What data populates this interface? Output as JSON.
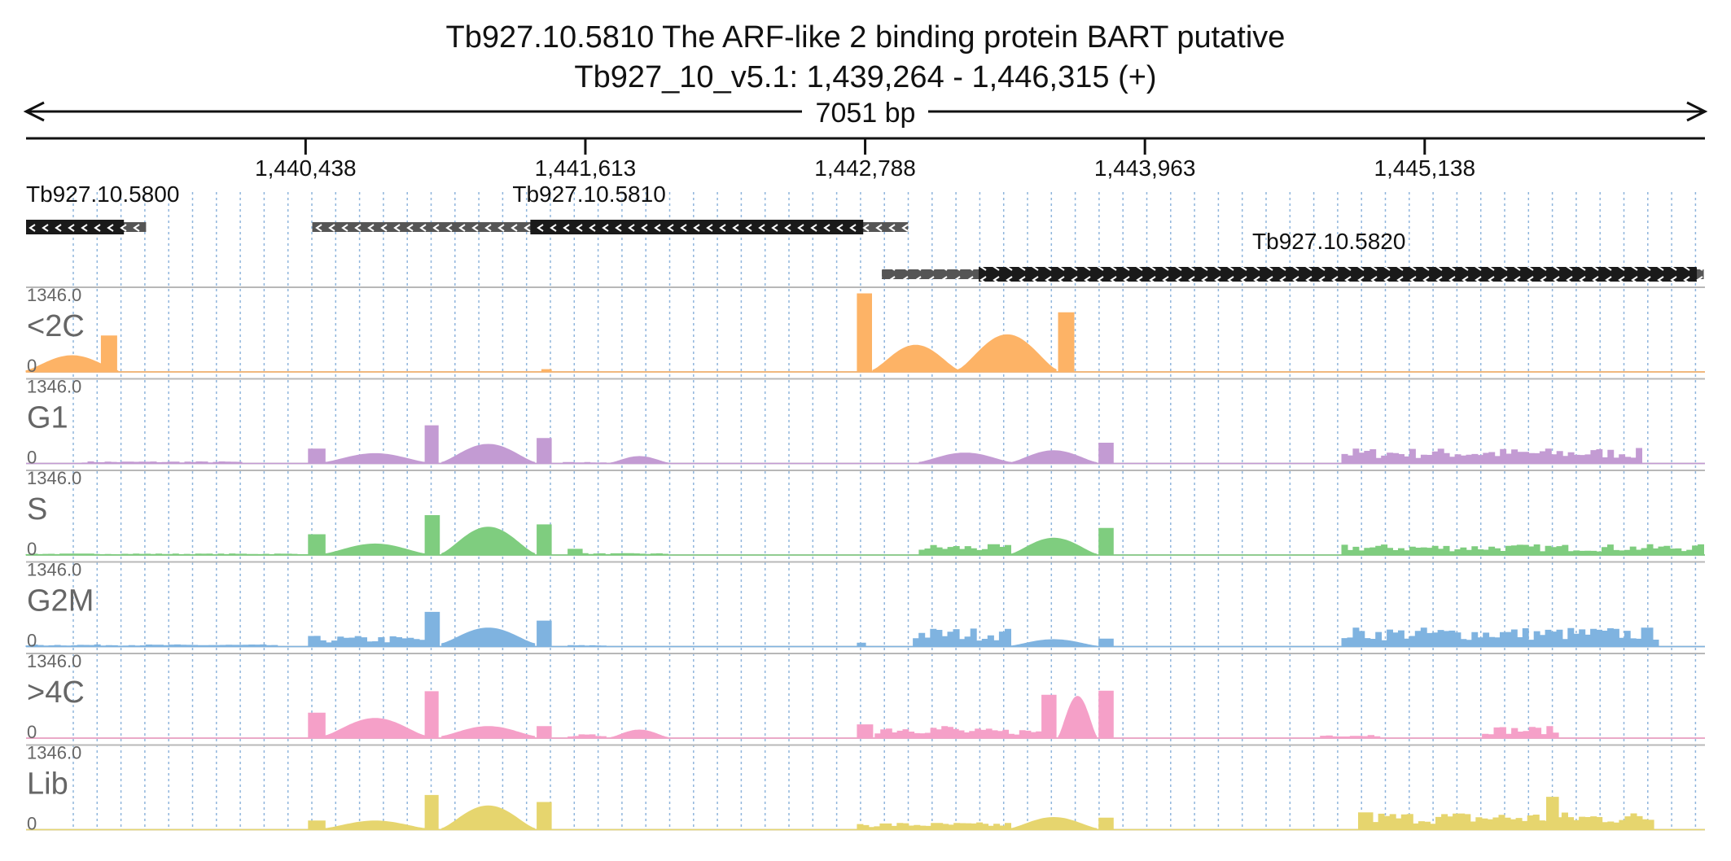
{
  "title": {
    "line1": "Tb927.10.5810  The ARF-like 2 binding protein BART  putative",
    "line2": "Tb927_10_v5.1: 1,439,264 - 1,446,315 (+)"
  },
  "ruler": {
    "span_label": "7051 bp",
    "ticks": [
      {
        "pos": 1440438,
        "label": "1,440,438"
      },
      {
        "pos": 1441613,
        "label": "1,441,613"
      },
      {
        "pos": 1442788,
        "label": "1,442,788"
      },
      {
        "pos": 1443963,
        "label": "1,443,963"
      },
      {
        "pos": 1445138,
        "label": "1,445,138"
      }
    ]
  },
  "genes": [
    {
      "name": "Tb927.10.5800",
      "strand": "-",
      "utr": [
        1439264,
        1439768
      ],
      "cds": [
        1439264,
        1439675
      ],
      "row": 0
    },
    {
      "name": "Tb927.10.5810",
      "strand": "-",
      "utr": [
        1440466,
        1442968
      ],
      "cds": [
        1441382,
        1442780
      ],
      "row": 0
    },
    {
      "name": "Tb927.10.5820",
      "strand": "-",
      "utr": [
        1442858,
        1446310
      ],
      "cds": [
        1443265,
        1446281
      ],
      "row": 1
    }
  ],
  "colors": {
    "<2C": "#fdb366",
    "G1": "#c39bd3",
    "S": "#7fcd7f",
    "G2M": "#7fb3e0",
    ">4C": "#f5a0c8",
    "Lib": "#e6d56e",
    "gene": "#1a1a1a",
    "utr": "#555555",
    "grid": "#8fb5dc"
  },
  "chart_data": {
    "type": "area",
    "x_range": [
      1439264,
      1446315
    ],
    "ylim": [
      0,
      1346.0
    ],
    "y_labels": {
      "max": "1346.0",
      "min": "0"
    },
    "tracks": [
      {
        "name": "<2C",
        "segments": [
          {
            "x": [
              1439264,
              1439650
            ],
            "shape": "dome",
            "peak": 280,
            "base": 20
          },
          {
            "x": [
              1439580,
              1439645
            ],
            "shape": "flat",
            "peak": 620
          },
          {
            "x": [
              1441430,
              1441470
            ],
            "shape": "flat",
            "peak": 40
          },
          {
            "x": [
              1442755,
              1442815
            ],
            "shape": "flat",
            "peak": 1346
          },
          {
            "x": [
              1442820,
              1443180
            ],
            "shape": "dome",
            "peak": 460,
            "base": 30
          },
          {
            "x": [
              1443180,
              1443590
            ],
            "shape": "dome",
            "peak": 640,
            "base": 40
          },
          {
            "x": [
              1443600,
              1443665
            ],
            "shape": "flat",
            "peak": 1020
          }
        ]
      },
      {
        "name": "G1",
        "segments": [
          {
            "x": [
              1439500,
              1440170
            ],
            "shape": "noise",
            "peak": 30
          },
          {
            "x": [
              1440450,
              1440520
            ],
            "shape": "flat",
            "peak": 250
          },
          {
            "x": [
              1440520,
              1440940
            ],
            "shape": "dome",
            "peak": 170,
            "base": 20
          },
          {
            "x": [
              1440940,
              1440995
            ],
            "shape": "flat",
            "peak": 650
          },
          {
            "x": [
              1441010,
              1441400
            ],
            "shape": "dome",
            "peak": 330,
            "base": 20
          },
          {
            "x": [
              1441410,
              1441470
            ],
            "shape": "flat",
            "peak": 430
          },
          {
            "x": [
              1441520,
              1441700
            ],
            "shape": "noise",
            "peak": 20
          },
          {
            "x": [
              1441720,
              1441960
            ],
            "shape": "dome",
            "peak": 120,
            "base": 10
          },
          {
            "x": [
              1443015,
              1443400
            ],
            "shape": "dome",
            "peak": 180,
            "base": 20
          },
          {
            "x": [
              1443400,
              1443760
            ],
            "shape": "dome",
            "peak": 220,
            "base": 15
          },
          {
            "x": [
              1443770,
              1443830
            ],
            "shape": "flat",
            "peak": 350
          },
          {
            "x": [
              1444790,
              1446050
            ],
            "shape": "noise",
            "peak": 260
          }
        ]
      },
      {
        "name": "S",
        "segments": [
          {
            "x": [
              1439264,
              1440450
            ],
            "shape": "noise",
            "peak": 20
          },
          {
            "x": [
              1440450,
              1440520
            ],
            "shape": "flat",
            "peak": 350
          },
          {
            "x": [
              1440520,
              1440940
            ],
            "shape": "dome",
            "peak": 190,
            "base": 20
          },
          {
            "x": [
              1440940,
              1441000
            ],
            "shape": "flat",
            "peak": 680
          },
          {
            "x": [
              1441010,
              1441400
            ],
            "shape": "dome",
            "peak": 480,
            "base": 25
          },
          {
            "x": [
              1441410,
              1441470
            ],
            "shape": "flat",
            "peak": 520
          },
          {
            "x": [
              1441540,
              1441600
            ],
            "shape": "flat",
            "peak": 100
          },
          {
            "x": [
              1441600,
              1441960
            ],
            "shape": "noise",
            "peak": 25
          },
          {
            "x": [
              1443015,
              1443400
            ],
            "shape": "noise",
            "peak": 180
          },
          {
            "x": [
              1443400,
              1443760
            ],
            "shape": "dome",
            "peak": 290,
            "base": 15
          },
          {
            "x": [
              1443770,
              1443830
            ],
            "shape": "flat",
            "peak": 460
          },
          {
            "x": [
              1444790,
              1446310
            ],
            "shape": "noise",
            "peak": 180
          }
        ]
      },
      {
        "name": "G2M",
        "segments": [
          {
            "x": [
              1439264,
              1440320
            ],
            "shape": "noise",
            "peak": 30
          },
          {
            "x": [
              1440450,
              1440940
            ],
            "shape": "noise",
            "peak": 180
          },
          {
            "x": [
              1440940,
              1441000
            ],
            "shape": "flat",
            "peak": 590
          },
          {
            "x": [
              1441010,
              1441400
            ],
            "shape": "dome",
            "peak": 320,
            "base": 50
          },
          {
            "x": [
              1441410,
              1441470
            ],
            "shape": "flat",
            "peak": 440
          },
          {
            "x": [
              1441540,
              1441700
            ],
            "shape": "noise",
            "peak": 20
          },
          {
            "x": [
              1442755,
              1442790
            ],
            "shape": "flat",
            "peak": 60
          },
          {
            "x": [
              1442990,
              1443400
            ],
            "shape": "noise",
            "peak": 320
          },
          {
            "x": [
              1443400,
              1443760
            ],
            "shape": "dome",
            "peak": 120,
            "base": 10
          },
          {
            "x": [
              1443770,
              1443830
            ],
            "shape": "flat",
            "peak": 130
          },
          {
            "x": [
              1444790,
              1446120
            ],
            "shape": "noise",
            "peak": 330
          }
        ]
      },
      {
        "name": ">4C",
        "segments": [
          {
            "x": [
              1440450,
              1440520
            ],
            "shape": "flat",
            "peak": 430
          },
          {
            "x": [
              1440520,
              1440940
            ],
            "shape": "dome",
            "peak": 340,
            "base": 40
          },
          {
            "x": [
              1440940,
              1440995
            ],
            "shape": "flat",
            "peak": 800
          },
          {
            "x": [
              1441010,
              1441400
            ],
            "shape": "dome",
            "peak": 200,
            "base": 30
          },
          {
            "x": [
              1441410,
              1441470
            ],
            "shape": "flat",
            "peak": 200
          },
          {
            "x": [
              1441540,
              1441700
            ],
            "shape": "noise",
            "peak": 60
          },
          {
            "x": [
              1441720,
              1441960
            ],
            "shape": "dome",
            "peak": 140,
            "base": 10
          },
          {
            "x": [
              1442755,
              1442820
            ],
            "shape": "flat",
            "peak": 230
          },
          {
            "x": [
              1442830,
              1443180
            ],
            "shape": "noise",
            "peak": 230
          },
          {
            "x": [
              1443180,
              1443530
            ],
            "shape": "noise",
            "peak": 160
          },
          {
            "x": [
              1443530,
              1443590
            ],
            "shape": "flat",
            "peak": 740
          },
          {
            "x": [
              1443600,
              1443760
            ],
            "shape": "dome",
            "peak": 720,
            "base": 30
          },
          {
            "x": [
              1443770,
              1443830
            ],
            "shape": "flat",
            "peak": 810
          },
          {
            "x": [
              1444700,
              1444950
            ],
            "shape": "noise",
            "peak": 60
          },
          {
            "x": [
              1445380,
              1445700
            ],
            "shape": "noise",
            "peak": 200
          }
        ]
      },
      {
        "name": "Lib",
        "segments": [
          {
            "x": [
              1440450,
              1440520
            ],
            "shape": "flat",
            "peak": 150
          },
          {
            "x": [
              1440520,
              1440940
            ],
            "shape": "dome",
            "peak": 150,
            "base": 20
          },
          {
            "x": [
              1440940,
              1440995
            ],
            "shape": "flat",
            "peak": 590
          },
          {
            "x": [
              1441010,
              1441400
            ],
            "shape": "dome",
            "peak": 410,
            "base": 20
          },
          {
            "x": [
              1441410,
              1441470
            ],
            "shape": "flat",
            "peak": 470
          },
          {
            "x": [
              1442755,
              1443400
            ],
            "shape": "noise",
            "peak": 120
          },
          {
            "x": [
              1443400,
              1443760
            ],
            "shape": "dome",
            "peak": 210,
            "base": 20
          },
          {
            "x": [
              1443770,
              1443830
            ],
            "shape": "flat",
            "peak": 200
          },
          {
            "x": [
              1444860,
              1444920
            ],
            "shape": "flat",
            "peak": 290
          },
          {
            "x": [
              1444920,
              1446100
            ],
            "shape": "noise",
            "peak": 300
          },
          {
            "x": [
              1445650,
              1445700
            ],
            "shape": "flat",
            "peak": 560
          }
        ]
      }
    ]
  }
}
